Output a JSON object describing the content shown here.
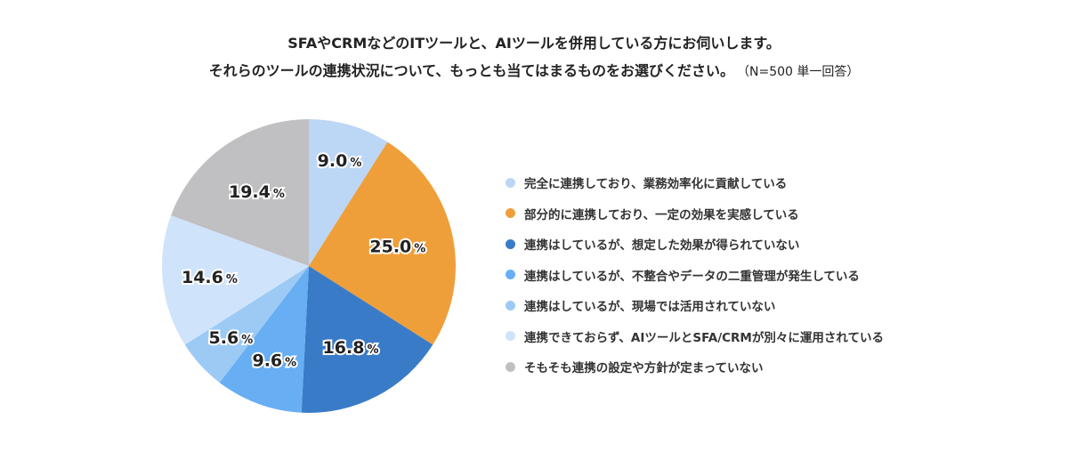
{
  "title": {
    "line1": "SFAやCRMなどのITツールと、AIツールを併用している方にお伺いします。",
    "line2": "それらのツールの連携状況について、もっとも当てはまるものをお選びください。",
    "note": "（N=500 単一回答）"
  },
  "chart_data": {
    "type": "pie",
    "title": "SFAやCRMなどのITツールと、AIツールを併用している方にお伺いします。それらのツールの連携状況について、もっとも当てはまるものをお選びください。",
    "note": "N=500 単一回答",
    "legend_position": "right",
    "categories": [
      "完全に連携しており、業務効率化に貢献している",
      "部分的に連携しており、一定の効果を実感している",
      "連携はしているが、想定した効果が得られていない",
      "連携はしているが、不整合やデータの二重管理が発生している",
      "連携はしているが、現場では活用されていない",
      "連携できておらず、AIツールとSFA/CRMが別々に運用されている",
      "そもそも連携の設定や方針が定まっていない"
    ],
    "values": [
      9.0,
      25.0,
      16.8,
      9.6,
      5.6,
      14.6,
      19.4
    ],
    "labels": [
      "9.0",
      "25.0",
      "16.8",
      "9.6",
      "5.6",
      "14.6",
      "19.4"
    ],
    "colors": [
      "#bcd6f5",
      "#ef9f3a",
      "#3a7bc8",
      "#67aef3",
      "#9ccaf5",
      "#cfe4fb",
      "#c0bfc2"
    ],
    "unit": "%"
  }
}
